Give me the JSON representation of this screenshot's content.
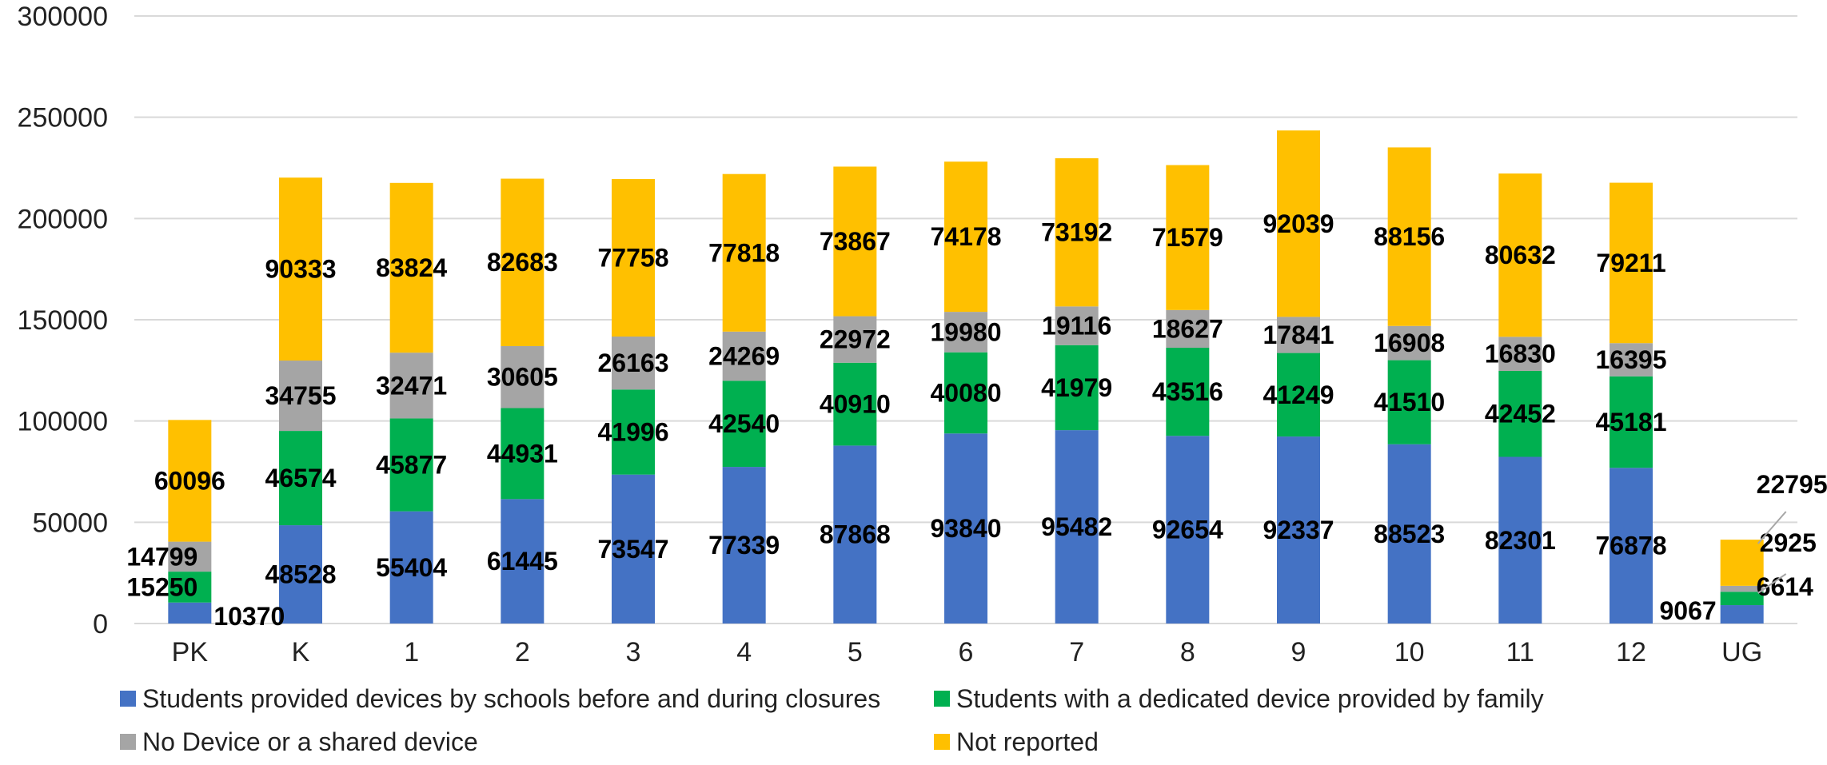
{
  "chart_data": {
    "type": "bar",
    "stacked": true,
    "categories": [
      "PK",
      "K",
      "1",
      "2",
      "3",
      "4",
      "5",
      "6",
      "7",
      "8",
      "9",
      "10",
      "11",
      "12",
      "UG"
    ],
    "series": [
      {
        "name": "Students provided devices by schools before and during closures",
        "color": "#4472C4",
        "values": [
          10370,
          48528,
          55404,
          61445,
          73547,
          77339,
          87868,
          93840,
          95482,
          92654,
          92337,
          88523,
          82301,
          76878,
          9067
        ]
      },
      {
        "name": "Students with a dedicated device provided by family",
        "color": "#00B050",
        "values": [
          15250,
          46574,
          45877,
          44931,
          41996,
          42540,
          40910,
          40080,
          41979,
          43516,
          41249,
          41510,
          42452,
          45181,
          6614
        ]
      },
      {
        "name": "No Device or a shared device",
        "color": "#A5A5A5",
        "values": [
          14799,
          34755,
          32471,
          30605,
          26163,
          24269,
          22972,
          19980,
          19116,
          18627,
          17841,
          16908,
          16830,
          16395,
          2925
        ]
      },
      {
        "name": "Not reported",
        "color": "#FFC000",
        "values": [
          60096,
          90333,
          83824,
          82683,
          77758,
          77818,
          73867,
          74178,
          73192,
          71579,
          92039,
          88156,
          80632,
          79211,
          22795
        ]
      }
    ],
    "ylim": [
      0,
      300000
    ],
    "yticks": [
      "0",
      "50000",
      "100000",
      "150000",
      "200000",
      "250000",
      "300000"
    ],
    "grid": true,
    "legend_position": "bottom",
    "title": "",
    "xlabel": "",
    "ylabel": ""
  }
}
